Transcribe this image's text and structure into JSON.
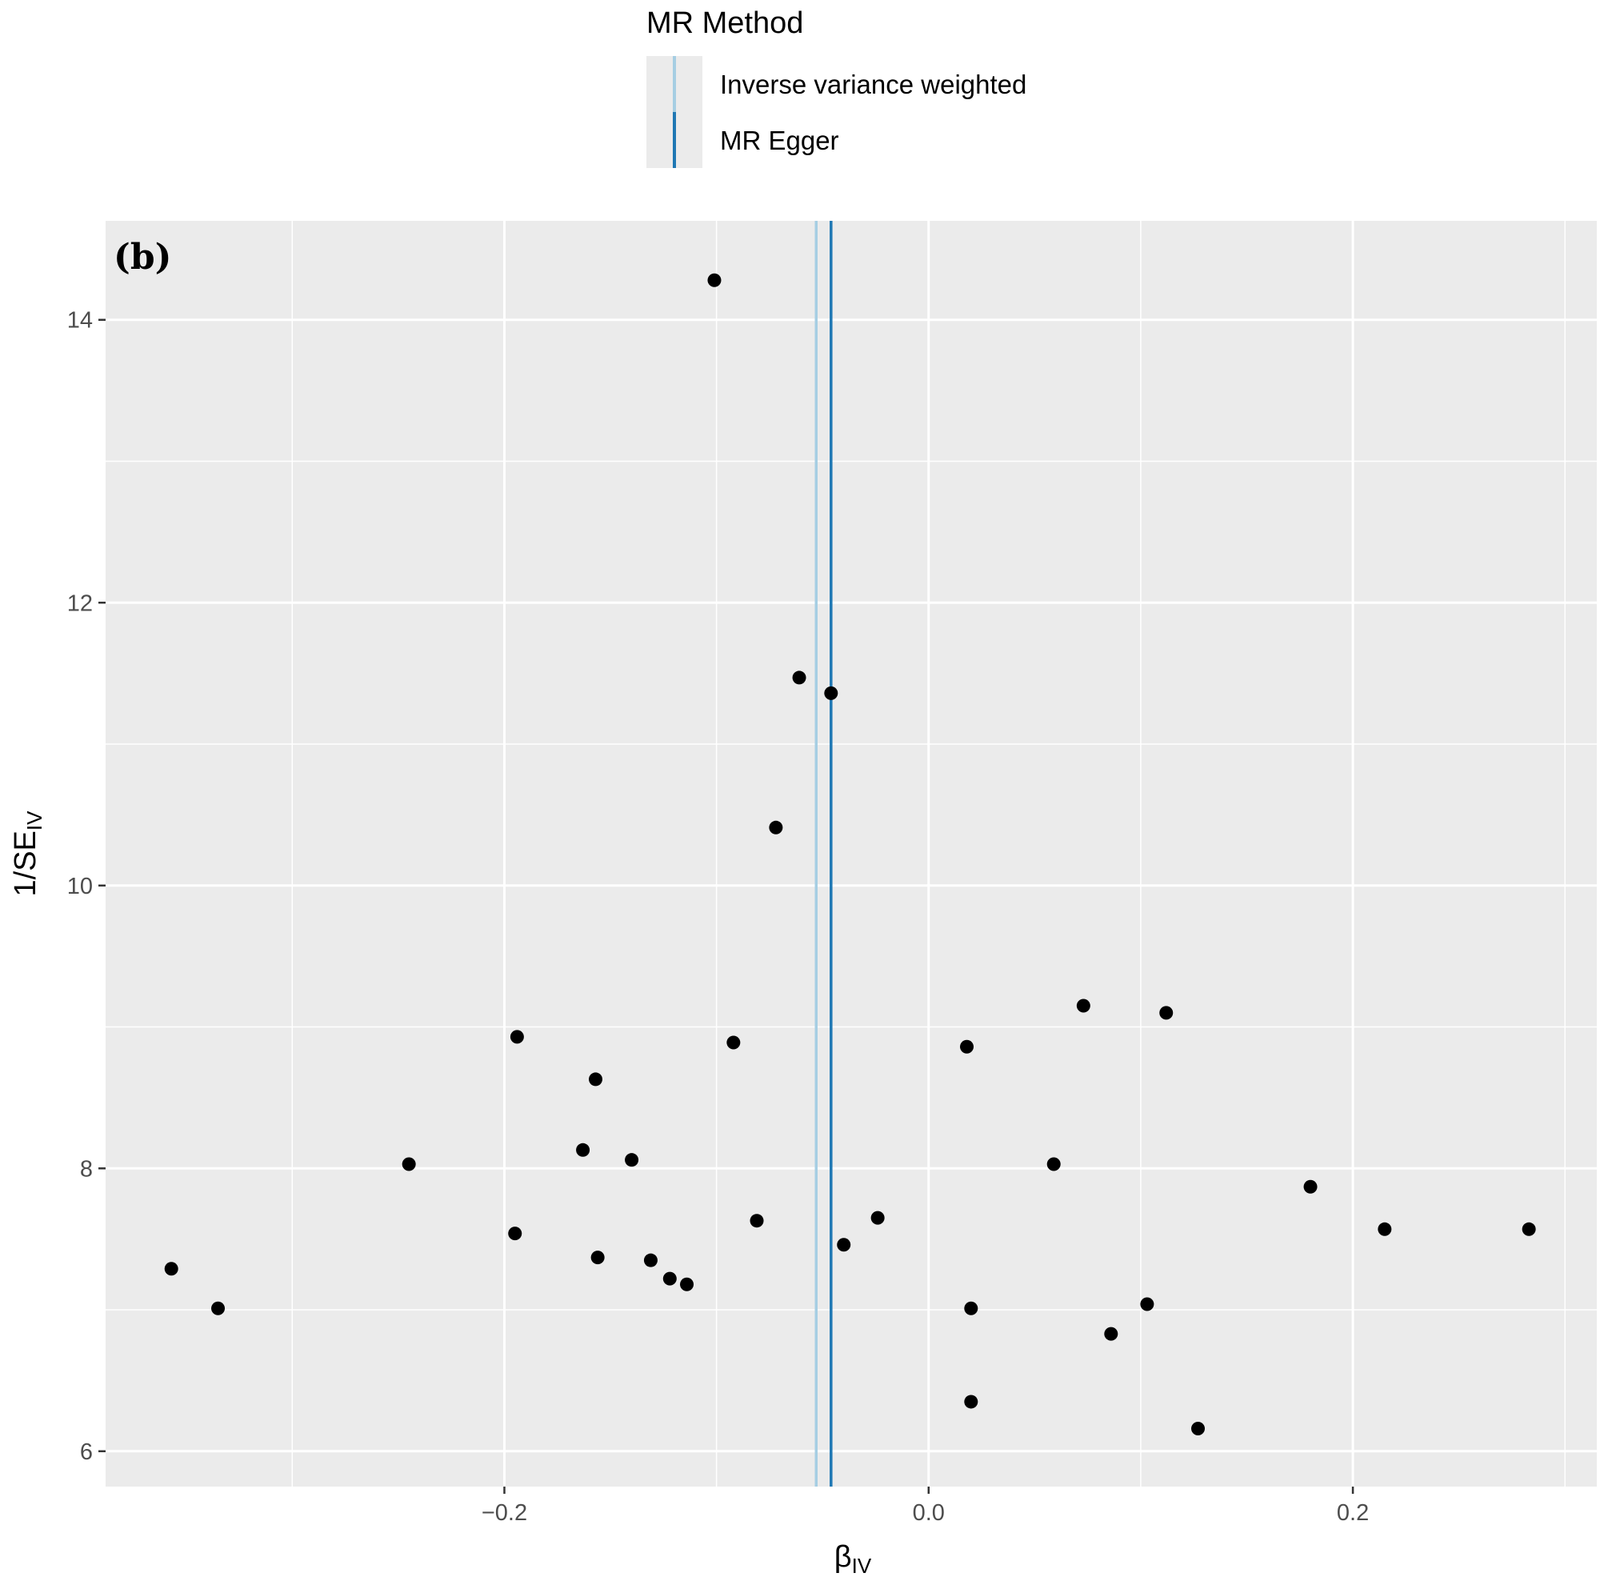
{
  "chart_data": {
    "type": "scatter",
    "panel_label": "(b)",
    "legend": {
      "title": "MR Method",
      "placement": "top-center",
      "entries": [
        {
          "label": "Inverse variance weighted",
          "color": "#a6cee3"
        },
        {
          "label": "MR Egger",
          "color": "#1f78b4"
        }
      ]
    },
    "xlabel": {
      "base": "β",
      "sub": "IV"
    },
    "ylabel": {
      "base": "1/SE",
      "sub": "IV"
    },
    "xlim": [
      -0.388,
      0.315
    ],
    "ylim": [
      5.75,
      14.7
    ],
    "x_ticks": [
      -0.2,
      0.0,
      0.2
    ],
    "x_tick_labels": [
      "−0.2",
      "0.0",
      "0.2"
    ],
    "x_minor": [
      -0.3,
      -0.1,
      0.1,
      0.3
    ],
    "y_ticks": [
      6,
      8,
      10,
      12,
      14
    ],
    "y_tick_labels": [
      "6",
      "8",
      "10",
      "12",
      "14"
    ],
    "y_minor": [
      7,
      9,
      11,
      13
    ],
    "grid": true,
    "vlines": [
      {
        "method": "Inverse variance weighted",
        "x": -0.053,
        "color": "#a6cee3"
      },
      {
        "method": "MR Egger",
        "x": -0.046,
        "color": "#1f78b4"
      }
    ],
    "points": [
      {
        "x": -0.101,
        "y": 14.28
      },
      {
        "x": -0.061,
        "y": 11.47
      },
      {
        "x": -0.046,
        "y": 11.36
      },
      {
        "x": -0.072,
        "y": 10.41
      },
      {
        "x": 0.073,
        "y": 9.15
      },
      {
        "x": 0.112,
        "y": 9.1
      },
      {
        "x": -0.194,
        "y": 8.93
      },
      {
        "x": -0.092,
        "y": 8.89
      },
      {
        "x": 0.018,
        "y": 8.86
      },
      {
        "x": -0.157,
        "y": 8.63
      },
      {
        "x": -0.163,
        "y": 8.13
      },
      {
        "x": -0.14,
        "y": 8.06
      },
      {
        "x": -0.245,
        "y": 8.03
      },
      {
        "x": 0.059,
        "y": 8.03
      },
      {
        "x": 0.18,
        "y": 7.87
      },
      {
        "x": -0.024,
        "y": 7.65
      },
      {
        "x": -0.081,
        "y": 7.63
      },
      {
        "x": 0.215,
        "y": 7.57
      },
      {
        "x": 0.283,
        "y": 7.57
      },
      {
        "x": -0.195,
        "y": 7.54
      },
      {
        "x": -0.04,
        "y": 7.46
      },
      {
        "x": -0.156,
        "y": 7.37
      },
      {
        "x": -0.131,
        "y": 7.35
      },
      {
        "x": -0.357,
        "y": 7.29
      },
      {
        "x": -0.122,
        "y": 7.22
      },
      {
        "x": -0.114,
        "y": 7.18
      },
      {
        "x": 0.103,
        "y": 7.04
      },
      {
        "x": -0.335,
        "y": 7.01
      },
      {
        "x": 0.02,
        "y": 7.01
      },
      {
        "x": 0.086,
        "y": 6.83
      },
      {
        "x": 0.02,
        "y": 6.35
      },
      {
        "x": 0.127,
        "y": 6.16
      }
    ]
  }
}
